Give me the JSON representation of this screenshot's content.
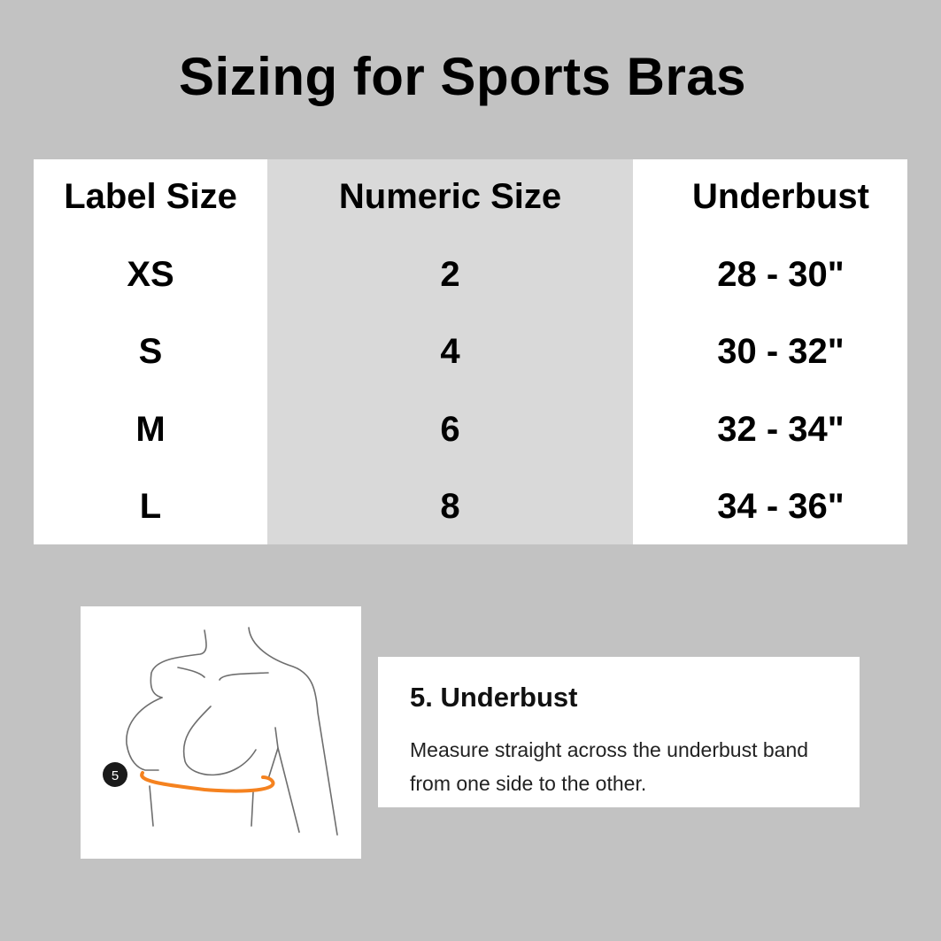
{
  "title": "Sizing for Sports Bras",
  "table": {
    "headers": [
      "Label Size",
      "Numeric Size",
      "Underbust"
    ],
    "rows": [
      [
        "XS",
        "2",
        "28 - 30\""
      ],
      [
        "S",
        "4",
        "30 - 32\""
      ],
      [
        "M",
        "6",
        "32 - 34\""
      ],
      [
        "L",
        "8",
        "34 - 36\""
      ]
    ]
  },
  "illustration": {
    "badge": "5",
    "accent_color": "#f5821f"
  },
  "info": {
    "heading": "5. Underbust",
    "body": "Measure straight across the underbust band from one side to the other."
  }
}
